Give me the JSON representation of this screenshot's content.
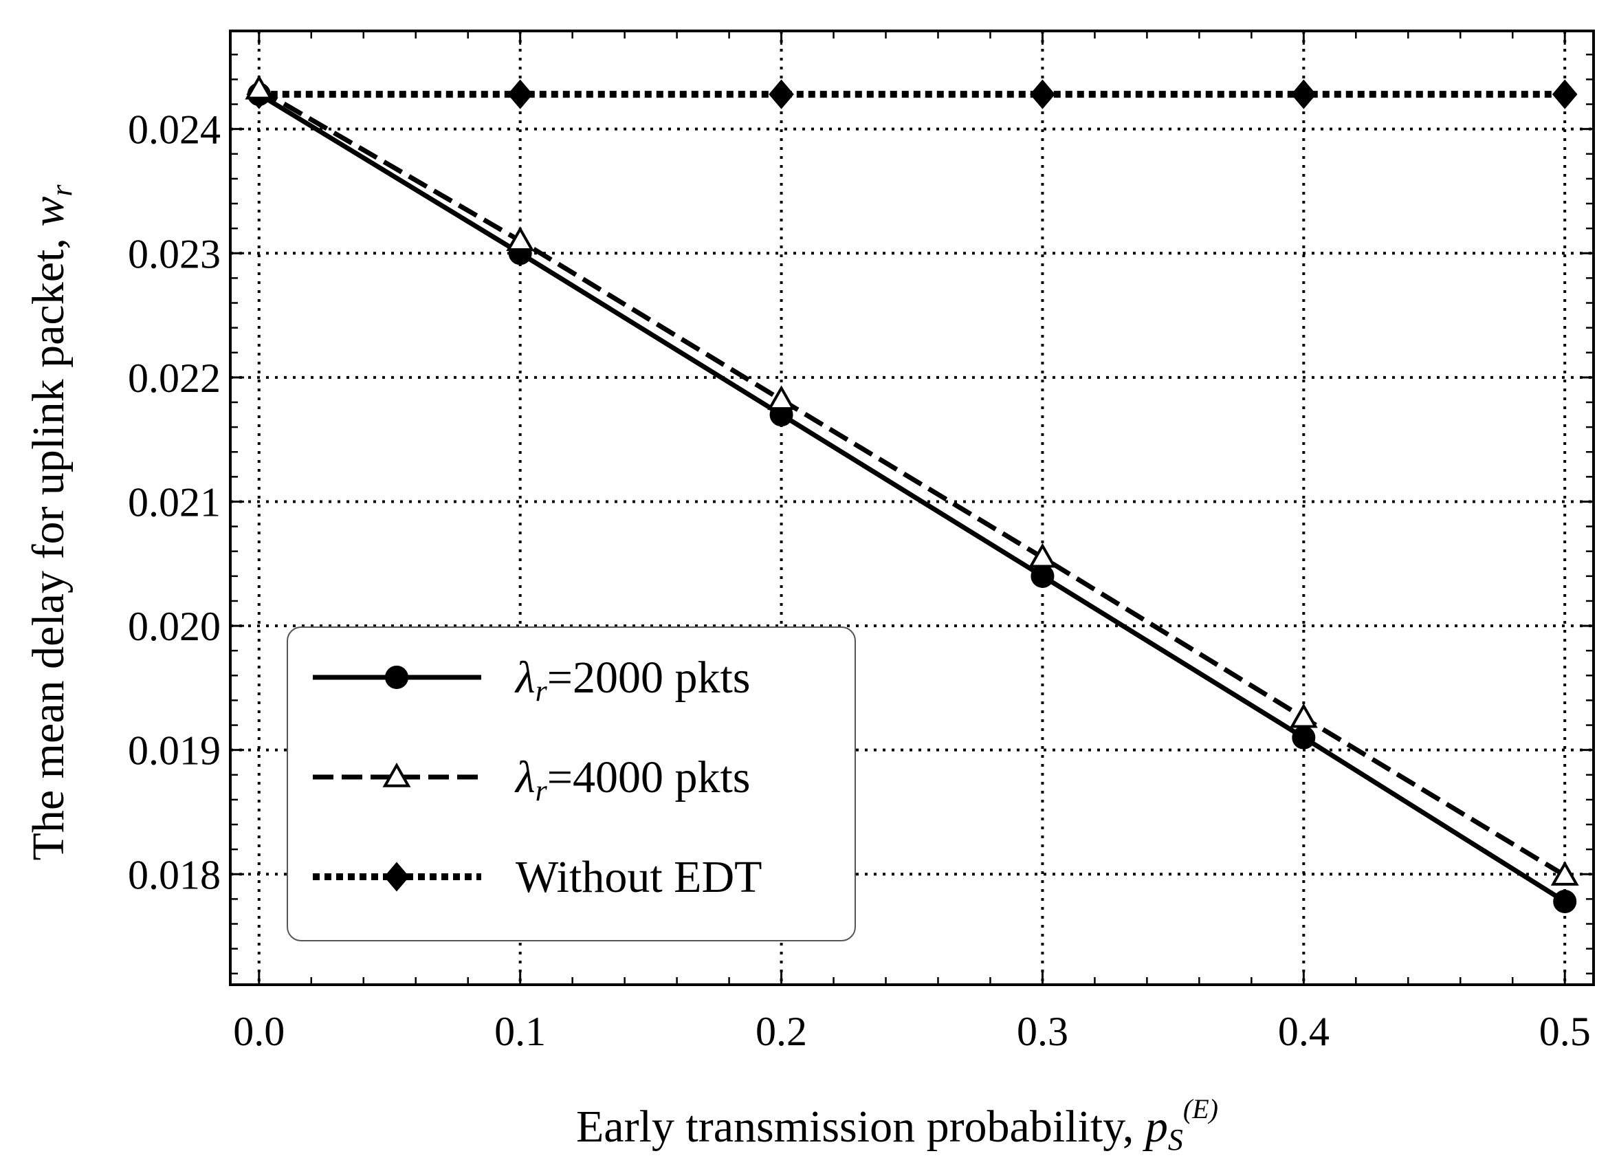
{
  "chart_data": {
    "type": "line",
    "xlabel": {
      "text": "Early transmission probability, ",
      "symbol": "p",
      "subscript": "S",
      "superscript": "(E)"
    },
    "ylabel": {
      "text": "The mean delay for uplink packet, ",
      "symbol": "w",
      "subscript": "r"
    },
    "x": [
      0.0,
      0.1,
      0.2,
      0.3,
      0.4,
      0.5
    ],
    "xlim": [
      -0.011,
      0.511
    ],
    "ylim": [
      0.01711,
      0.02479
    ],
    "xticks": [
      "0.0",
      "0.1",
      "0.2",
      "0.3",
      "0.4",
      "0.5"
    ],
    "xtick_values": [
      0.0,
      0.1,
      0.2,
      0.3,
      0.4,
      0.5
    ],
    "yticks": [
      "0.018",
      "0.019",
      "0.020",
      "0.021",
      "0.022",
      "0.023",
      "0.024"
    ],
    "ytick_values": [
      0.018,
      0.019,
      0.02,
      0.021,
      0.022,
      0.023,
      0.024
    ],
    "grid": true,
    "legend_position": "lower-left",
    "series": [
      {
        "name": "λr=2000 pkts",
        "legend_symbol": "λ",
        "legend_sub": "r",
        "legend_rest": "=2000 pkts",
        "line": "solid",
        "marker": "circle",
        "values": [
          0.02428,
          0.023,
          0.0217,
          0.0204,
          0.0191,
          0.01778
        ]
      },
      {
        "name": "λr=4000 pkts",
        "legend_symbol": "λ",
        "legend_sub": "r",
        "legend_rest": "=4000 pkts",
        "line": "dashed",
        "marker": "triangle-open",
        "values": [
          0.02432,
          0.0231,
          0.02182,
          0.02055,
          0.01926,
          0.01799
        ]
      },
      {
        "name": "Without EDT",
        "legend_symbol": "",
        "legend_sub": "",
        "legend_rest": "Without EDT",
        "line": "dotted",
        "marker": "diamond",
        "values": [
          0.02428,
          0.02428,
          0.02428,
          0.02428,
          0.02428,
          0.02428
        ]
      }
    ]
  }
}
